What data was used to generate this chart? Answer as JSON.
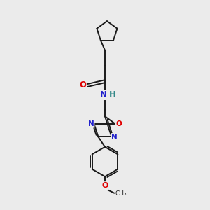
{
  "background_color": "#ebebeb",
  "bond_color": "#1a1a1a",
  "atom_colors": {
    "O": "#e00000",
    "N": "#2222cc",
    "H": "#338888",
    "C": "#1a1a1a"
  },
  "figsize": [
    3.0,
    3.0
  ],
  "dpi": 100
}
